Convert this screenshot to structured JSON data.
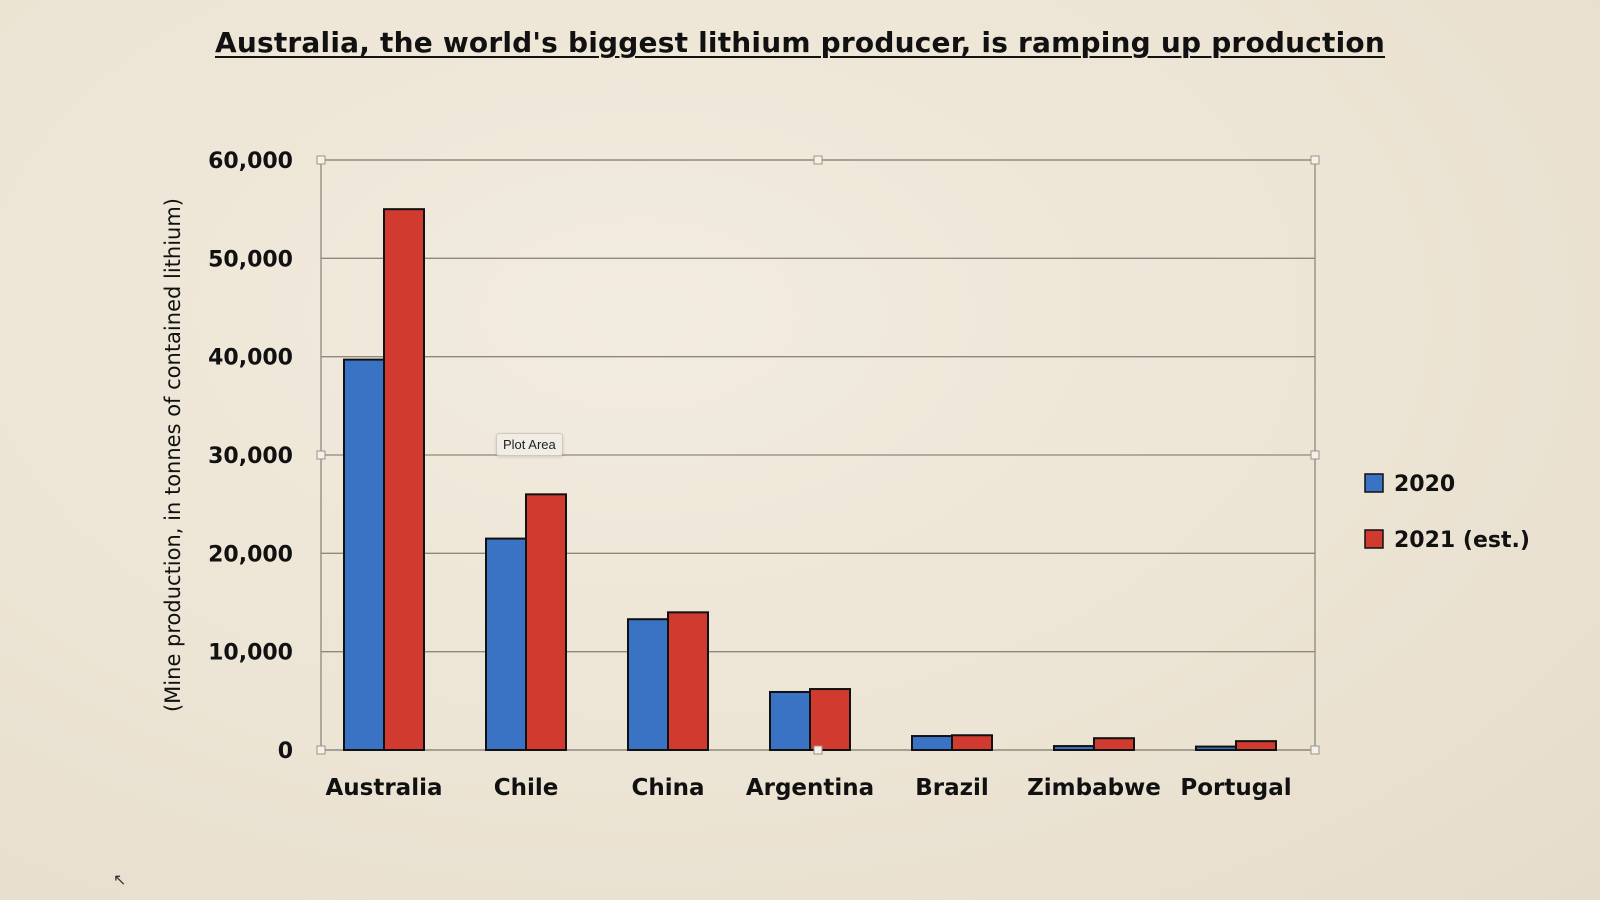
{
  "chart_data": {
    "type": "bar",
    "title": " Australia, the world's biggest lithium producer, is ramping up production",
    "ylabel": "(Mine production, in tonnes of contained lithium)",
    "xlabel": "",
    "ylim": [
      0,
      60000
    ],
    "yticks": [
      "0",
      "10,000",
      "20,000",
      "30,000",
      "40,000",
      "50,000",
      "60,000"
    ],
    "ytick_values": [
      0,
      10000,
      20000,
      30000,
      40000,
      50000,
      60000
    ],
    "grid": true,
    "legend_position": "right",
    "categories": [
      "Australia",
      "Chile",
      "China",
      "Argentina",
      "Brazil",
      "Zimbabwe",
      "Portugal"
    ],
    "series": [
      {
        "name": "2020",
        "color": "#3a72c4",
        "values": [
          39700,
          21500,
          13300,
          5900,
          1420,
          400,
          348
        ]
      },
      {
        "name": "2021 (est.)",
        "color": "#d13a2e",
        "values": [
          55000,
          26000,
          14000,
          6200,
          1500,
          1200,
          900
        ]
      }
    ]
  },
  "tooltip": {
    "text": "Plot Area"
  }
}
